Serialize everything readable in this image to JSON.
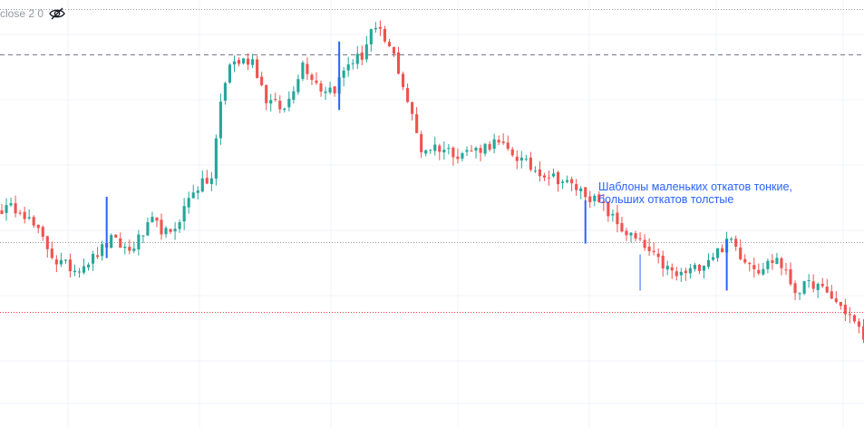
{
  "legend": {
    "indicator_label": "close 2 0",
    "toggle_icon": "eye-off-icon"
  },
  "annotation": {
    "line1": "Шаблоны маленьких откатов тонкие,",
    "line2": "больших откатов толстые"
  },
  "colors": {
    "up": "#26a69a",
    "down": "#ef5350",
    "marker": "#2962ff",
    "annotation": "#2962ff",
    "grid": "#f0f3fa",
    "dashed_level": "#787b86",
    "dotted_gray": "#9598a1",
    "dotted_red": "#f23645"
  },
  "chart_data": {
    "type": "candlestick",
    "title": "",
    "xlabel": "",
    "ylabel": "",
    "ylim": [
      0,
      100
    ],
    "grid": true,
    "bar_count": 190,
    "close_path": [
      [
        0,
        43.5
      ],
      [
        4,
        44
      ],
      [
        8,
        37
      ],
      [
        12,
        29
      ],
      [
        16,
        27
      ],
      [
        20,
        30
      ],
      [
        24,
        35
      ],
      [
        28,
        32
      ],
      [
        33,
        40
      ],
      [
        37,
        36
      ],
      [
        42,
        49
      ],
      [
        46,
        52
      ],
      [
        48,
        73
      ],
      [
        50,
        84
      ],
      [
        55,
        85
      ],
      [
        58,
        74
      ],
      [
        62,
        71
      ],
      [
        66,
        84
      ],
      [
        70,
        77
      ],
      [
        73,
        77
      ],
      [
        76,
        84
      ],
      [
        79,
        86
      ],
      [
        81,
        93
      ],
      [
        83,
        92
      ],
      [
        86,
        86
      ],
      [
        88,
        78
      ],
      [
        92,
        60
      ],
      [
        95,
        61
      ],
      [
        100,
        59
      ],
      [
        104,
        60
      ],
      [
        108,
        62
      ],
      [
        112,
        59
      ],
      [
        116,
        55
      ],
      [
        122,
        52
      ],
      [
        128,
        48
      ],
      [
        132,
        44
      ],
      [
        136,
        38
      ],
      [
        140,
        34
      ],
      [
        144,
        29
      ],
      [
        148,
        25
      ],
      [
        152,
        27
      ],
      [
        156,
        31
      ],
      [
        160,
        35
      ],
      [
        162,
        31
      ],
      [
        166,
        27
      ],
      [
        170,
        30
      ],
      [
        174,
        21
      ],
      [
        178,
        23
      ],
      [
        182,
        19
      ],
      [
        186,
        14
      ],
      [
        189,
        8
      ]
    ],
    "markers": [
      {
        "bar": 23,
        "high": 47,
        "low": 30
      },
      {
        "bar": 74,
        "high": 90,
        "low": 71
      },
      {
        "bar": 128,
        "high": 46,
        "low": 34
      },
      {
        "bar": 140,
        "high": 31,
        "low": 21
      },
      {
        "bar": 159,
        "high": 35,
        "low": 21
      }
    ],
    "levels": [
      {
        "y": 99,
        "style": "dotted-gray"
      },
      {
        "y": 86.5,
        "style": "dashed"
      },
      {
        "y": 34.3,
        "style": "dotted-gray"
      },
      {
        "y": 15.2,
        "style": "dotted-red"
      }
    ],
    "annotations": [
      "Шаблоны маленьких откатов тонкие, больших откатов толстые"
    ]
  }
}
